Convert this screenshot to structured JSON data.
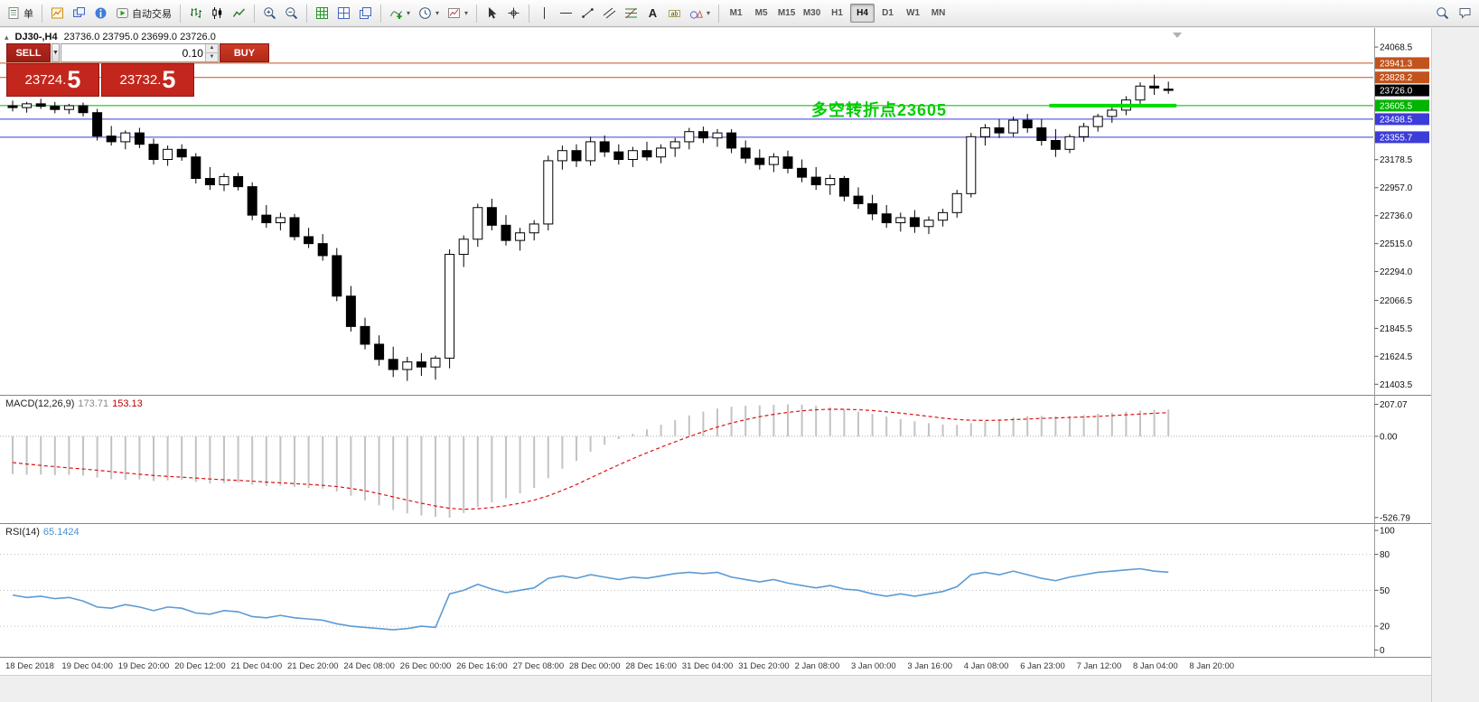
{
  "toolbar": {
    "left_groups": [
      [
        {
          "name": "new-order-button",
          "icon": "order-form-icon",
          "label": "单"
        }
      ],
      [
        {
          "name": "new-chart-button",
          "icon": "new-chart-icon"
        },
        {
          "name": "profiles-button",
          "icon": "windows-icon"
        },
        {
          "name": "data-window-button",
          "icon": "info-icon"
        },
        {
          "name": "autotrading-button",
          "icon": "autotrading-play-icon",
          "label": "自动交易"
        }
      ],
      [
        {
          "name": "chart-bars-button",
          "icon": "ohlc-bars-icon"
        },
        {
          "name": "chart-candles-button",
          "icon": "candlesticks-icon"
        },
        {
          "name": "chart-line-button",
          "icon": "line-chart-icon"
        }
      ],
      [
        {
          "name": "zoom-in-button",
          "icon": "zoom-in-icon"
        },
        {
          "name": "zoom-out-button",
          "icon": "zoom-out-icon"
        }
      ],
      [
        {
          "name": "grid-button",
          "icon": "grid-icon"
        },
        {
          "name": "tile-windows-button",
          "icon": "tile-windows-icon"
        },
        {
          "name": "cascade-windows-button",
          "icon": "cascade-windows-icon"
        }
      ],
      [
        {
          "name": "indicators-button",
          "icon": "add-indicator-icon",
          "caret": true
        },
        {
          "name": "periods-button",
          "icon": "clock-icon",
          "caret": true
        },
        {
          "name": "templates-button",
          "icon": "template-icon",
          "caret": true
        }
      ],
      [
        {
          "name": "cursor-button",
          "icon": "cursor-icon"
        },
        {
          "name": "crosshair-button",
          "icon": "crosshair-icon"
        }
      ],
      [
        {
          "name": "vertical-line-button",
          "icon": "vertical-line-icon"
        },
        {
          "name": "horizontal-line-button",
          "icon": "horizontal-line-icon"
        },
        {
          "name": "trendline-button",
          "icon": "trendline-icon"
        },
        {
          "name": "channel-button",
          "icon": "channel-icon"
        },
        {
          "name": "fibonacci-button",
          "icon": "fibonacci-icon"
        },
        {
          "name": "text-button",
          "icon": "text-icon"
        },
        {
          "name": "label-button",
          "icon": "text-label-icon"
        },
        {
          "name": "shapes-button",
          "icon": "shapes-icon",
          "caret": true
        }
      ]
    ],
    "timeframes": [
      {
        "label": "M1"
      },
      {
        "label": "M5"
      },
      {
        "label": "M15"
      },
      {
        "label": "M30"
      },
      {
        "label": "H1"
      },
      {
        "label": "H4",
        "active": true
      },
      {
        "label": "D1"
      },
      {
        "label": "W1"
      },
      {
        "label": "MN"
      }
    ],
    "right_items": [
      {
        "name": "search-button",
        "icon": "search-icon"
      },
      {
        "name": "chat-button",
        "icon": "chat-icon"
      }
    ]
  },
  "symbol_header": {
    "title": "DJ30-,H4",
    "ohlc": "23736.0 23795.0 23699.0 23726.0"
  },
  "one_click": {
    "sell_label": "SELL",
    "buy_label": "BUY",
    "volume": "0.10",
    "sell_price": "23724.5",
    "buy_price": "23732.5"
  },
  "annotation": {
    "text": "多空转折点23605",
    "color": "#00cd00"
  },
  "hlines": [
    {
      "price": 23941.3,
      "color": "#c2531c",
      "width": 1
    },
    {
      "price": 23828.2,
      "color": "#c2531c",
      "width": 1
    },
    {
      "price": 23605.5,
      "color": "#00b400",
      "width": 1
    },
    {
      "price": 23498.5,
      "color": "#3c3cd8",
      "width": 1
    },
    {
      "price": 23355.7,
      "color": "#3c3cd8",
      "width": 1
    }
  ],
  "trend_segment": {
    "price": 23605.5,
    "from_candle": 74,
    "to_candle": 82,
    "color": "#00dd00",
    "width": 4
  },
  "price_axis": {
    "ticks": [
      {
        "label": "24068.5",
        "price": 24068.5
      },
      {
        "label": "23178.5",
        "price": 23178.5
      },
      {
        "label": "22957.0",
        "price": 22957.0
      },
      {
        "label": "22736.0",
        "price": 22736.0
      },
      {
        "label": "22515.0",
        "price": 22515.0
      },
      {
        "label": "22294.0",
        "price": 22294.0
      },
      {
        "label": "22066.5",
        "price": 22066.5
      },
      {
        "label": "21845.5",
        "price": 21845.5
      },
      {
        "label": "21624.5",
        "price": 21624.5
      },
      {
        "label": "21403.5",
        "price": 21403.5
      }
    ],
    "line_labels": [
      {
        "label": "23941.3",
        "price": 23941.3,
        "bg": "#c2531c"
      },
      {
        "label": "23828.2",
        "price": 23828.2,
        "bg": "#c2531c"
      },
      {
        "label": "23726.0",
        "price": 23726.0,
        "bg": "#000000"
      },
      {
        "label": "23605.5",
        "price": 23605.5,
        "bg": "#00b400"
      },
      {
        "label": "23498.5",
        "price": 23498.5,
        "bg": "#3c3cd8"
      },
      {
        "label": "23355.7",
        "price": 23355.7,
        "bg": "#3c3cd8"
      }
    ]
  },
  "chart_data": {
    "type": "candlestick",
    "symbol": "DJ30-",
    "timeframe": "H4",
    "view": {
      "price_top": 24219,
      "price_bottom": 21320
    },
    "candles": [
      [
        23605,
        23645,
        23560,
        23590
      ],
      [
        23590,
        23635,
        23550,
        23620
      ],
      [
        23620,
        23660,
        23580,
        23600
      ],
      [
        23600,
        23635,
        23545,
        23575
      ],
      [
        23575,
        23620,
        23540,
        23605
      ],
      [
        23605,
        23630,
        23520,
        23550
      ],
      [
        23550,
        23580,
        23330,
        23365
      ],
      [
        23365,
        23445,
        23290,
        23320
      ],
      [
        23320,
        23410,
        23260,
        23390
      ],
      [
        23390,
        23430,
        23270,
        23300
      ],
      [
        23300,
        23345,
        23140,
        23180
      ],
      [
        23180,
        23290,
        23130,
        23260
      ],
      [
        23260,
        23300,
        23170,
        23200
      ],
      [
        23200,
        23230,
        22990,
        23030
      ],
      [
        23030,
        23120,
        22940,
        22980
      ],
      [
        22980,
        23070,
        22930,
        23045
      ],
      [
        23045,
        23075,
        22935,
        22965
      ],
      [
        22965,
        23000,
        22700,
        22740
      ],
      [
        22740,
        22820,
        22640,
        22680
      ],
      [
        22680,
        22760,
        22620,
        22720
      ],
      [
        22720,
        22750,
        22540,
        22570
      ],
      [
        22570,
        22640,
        22480,
        22515
      ],
      [
        22515,
        22590,
        22380,
        22420
      ],
      [
        22420,
        22480,
        22060,
        22100
      ],
      [
        22100,
        22180,
        21820,
        21860
      ],
      [
        21860,
        21930,
        21680,
        21720
      ],
      [
        21720,
        21790,
        21550,
        21600
      ],
      [
        21600,
        21700,
        21460,
        21520
      ],
      [
        21520,
        21620,
        21430,
        21580
      ],
      [
        21580,
        21650,
        21470,
        21540
      ],
      [
        21540,
        21630,
        21440,
        21610
      ],
      [
        21610,
        22470,
        21530,
        22430
      ],
      [
        22430,
        22580,
        22330,
        22550
      ],
      [
        22550,
        22830,
        22490,
        22800
      ],
      [
        22800,
        22870,
        22620,
        22660
      ],
      [
        22660,
        22740,
        22500,
        22540
      ],
      [
        22540,
        22640,
        22460,
        22600
      ],
      [
        22600,
        22700,
        22540,
        22670
      ],
      [
        22670,
        23210,
        22620,
        23170
      ],
      [
        23170,
        23290,
        23100,
        23250
      ],
      [
        23250,
        23300,
        23120,
        23170
      ],
      [
        23170,
        23360,
        23130,
        23320
      ],
      [
        23320,
        23370,
        23200,
        23240
      ],
      [
        23240,
        23300,
        23140,
        23180
      ],
      [
        23180,
        23280,
        23120,
        23250
      ],
      [
        23250,
        23320,
        23170,
        23200
      ],
      [
        23200,
        23300,
        23150,
        23270
      ],
      [
        23270,
        23350,
        23200,
        23320
      ],
      [
        23320,
        23430,
        23260,
        23400
      ],
      [
        23400,
        23440,
        23310,
        23350
      ],
      [
        23350,
        23420,
        23280,
        23390
      ],
      [
        23390,
        23420,
        23230,
        23270
      ],
      [
        23270,
        23330,
        23150,
        23190
      ],
      [
        23190,
        23260,
        23100,
        23140
      ],
      [
        23140,
        23230,
        23080,
        23200
      ],
      [
        23200,
        23250,
        23070,
        23110
      ],
      [
        23110,
        23180,
        23000,
        23040
      ],
      [
        23040,
        23120,
        22940,
        22980
      ],
      [
        22980,
        23060,
        22900,
        23030
      ],
      [
        23030,
        23050,
        22850,
        22890
      ],
      [
        22890,
        22960,
        22790,
        22830
      ],
      [
        22830,
        22900,
        22700,
        22750
      ],
      [
        22750,
        22820,
        22640,
        22680
      ],
      [
        22680,
        22760,
        22610,
        22720
      ],
      [
        22720,
        22780,
        22600,
        22650
      ],
      [
        22650,
        22730,
        22590,
        22700
      ],
      [
        22700,
        22790,
        22650,
        22760
      ],
      [
        22760,
        22940,
        22720,
        22910
      ],
      [
        22910,
        23390,
        22880,
        23360
      ],
      [
        23360,
        23460,
        23290,
        23430
      ],
      [
        23430,
        23500,
        23350,
        23390
      ],
      [
        23390,
        23520,
        23360,
        23490
      ],
      [
        23490,
        23540,
        23390,
        23430
      ],
      [
        23430,
        23500,
        23290,
        23330
      ],
      [
        23330,
        23420,
        23200,
        23260
      ],
      [
        23260,
        23380,
        23230,
        23360
      ],
      [
        23360,
        23470,
        23320,
        23440
      ],
      [
        23440,
        23540,
        23400,
        23520
      ],
      [
        23520,
        23600,
        23470,
        23570
      ],
      [
        23570,
        23680,
        23530,
        23650
      ],
      [
        23650,
        23790,
        23620,
        23760
      ],
      [
        23760,
        23850,
        23690,
        23745
      ],
      [
        23736,
        23795,
        23699,
        23726
      ]
    ],
    "time_labels": [
      "18 Dec 2018",
      "19 Dec 04:00",
      "19 Dec 20:00",
      "20 Dec 12:00",
      "21 Dec 04:00",
      "21 Dec 20:00",
      "24 Dec 08:00",
      "26 Dec 00:00",
      "26 Dec 16:00",
      "27 Dec 08:00",
      "28 Dec 00:00",
      "28 Dec 16:00",
      "31 Dec 04:00",
      "31 Dec 20:00",
      "2 Jan 08:00",
      "3 Jan 00:00",
      "3 Jan 16:00",
      "4 Jan 08:00",
      "6 Jan 23:00",
      "7 Jan 12:00",
      "8 Jan 04:00",
      "8 Jan 20:00"
    ],
    "macd": {
      "label": "MACD(12,26,9)",
      "value_main": "173.71",
      "value_signal": "153.13",
      "axis": [
        {
          "label": "207.07",
          "value": 207.07
        },
        {
          "label": "0.00",
          "value": 0
        },
        {
          "label": "-526.79",
          "value": -526.79
        }
      ],
      "histogram": [
        -245,
        -250,
        -248,
        -252,
        -250,
        -255,
        -268,
        -278,
        -282,
        -280,
        -290,
        -286,
        -283,
        -296,
        -306,
        -303,
        -300,
        -315,
        -322,
        -320,
        -328,
        -335,
        -340,
        -358,
        -385,
        -415,
        -448,
        -478,
        -500,
        -514,
        -522,
        -527,
        -498,
        -458,
        -428,
        -402,
        -370,
        -335,
        -272,
        -210,
        -160,
        -100,
        -55,
        -18,
        15,
        45,
        75,
        105,
        135,
        160,
        180,
        192,
        198,
        200,
        204,
        207,
        205,
        198,
        188,
        175,
        160,
        145,
        128,
        112,
        98,
        85,
        76,
        74,
        85,
        98,
        110,
        122,
        130,
        132,
        130,
        132,
        138,
        146,
        153,
        160,
        166,
        171,
        173.7
      ],
      "signal": [
        -170,
        -180,
        -189,
        -197,
        -205,
        -212,
        -220,
        -229,
        -238,
        -246,
        -254,
        -260,
        -265,
        -271,
        -277,
        -282,
        -286,
        -291,
        -297,
        -302,
        -307,
        -312,
        -318,
        -326,
        -338,
        -353,
        -372,
        -393,
        -414,
        -434,
        -452,
        -467,
        -473,
        -470,
        -462,
        -450,
        -434,
        -414,
        -386,
        -351,
        -313,
        -270,
        -227,
        -185,
        -145,
        -107,
        -71,
        -36,
        -2,
        30,
        60,
        86,
        108,
        127,
        142,
        155,
        165,
        172,
        175,
        175,
        172,
        167,
        159,
        150,
        140,
        129,
        118,
        109,
        104,
        103,
        104,
        108,
        112,
        116,
        119,
        122,
        125,
        129,
        134,
        139,
        144,
        149,
        153.1
      ]
    },
    "rsi": {
      "label": "RSI(14)",
      "value": "65.1424",
      "levels": [
        80,
        50,
        20
      ],
      "axis": [
        {
          "label": "100",
          "value": 100
        },
        {
          "label": "80",
          "value": 80
        },
        {
          "label": "50",
          "value": 50
        },
        {
          "label": "20",
          "value": 20
        },
        {
          "label": "0",
          "value": 0
        }
      ],
      "values": [
        46,
        44,
        45,
        43,
        44,
        41,
        36,
        35,
        38,
        36,
        33,
        36,
        35,
        31,
        30,
        33,
        32,
        28,
        27,
        29,
        27,
        26,
        25,
        22,
        20,
        19,
        18,
        17,
        18,
        20,
        19,
        47,
        50,
        55,
        51,
        48,
        50,
        52,
        60,
        62,
        60,
        63,
        61,
        59,
        61,
        60,
        62,
        64,
        65,
        64,
        65,
        61,
        59,
        57,
        59,
        56,
        54,
        52,
        54,
        51,
        50,
        47,
        45,
        47,
        45,
        47,
        49,
        53,
        63,
        65,
        63,
        66,
        63,
        60,
        58,
        61,
        63,
        65,
        66,
        67,
        68,
        66,
        65.14
      ]
    }
  }
}
